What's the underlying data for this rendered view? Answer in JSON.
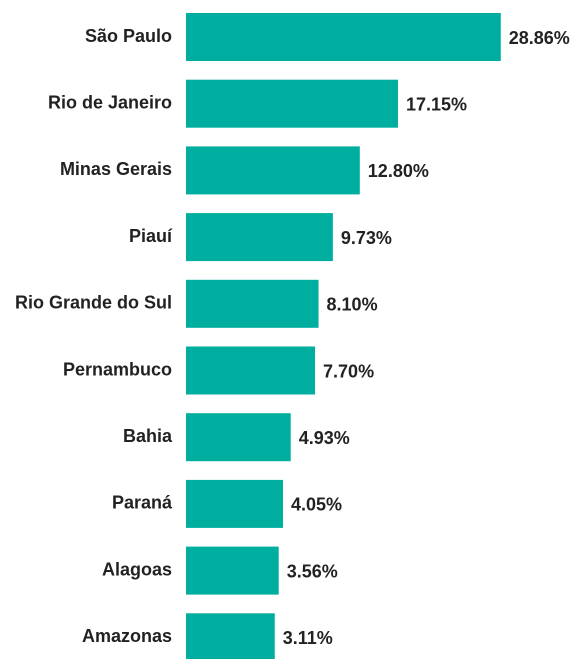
{
  "chart_data": {
    "type": "bar",
    "orientation": "horizontal",
    "categories": [
      "São Paulo",
      "Rio de Janeiro",
      "Minas Gerais",
      "Piauí",
      "Rio Grande do Sul",
      "Pernambuco",
      "Bahia",
      "Paraná",
      "Alagoas",
      "Amazonas"
    ],
    "values": [
      28.86,
      17.15,
      12.8,
      9.73,
      8.1,
      7.7,
      4.93,
      4.05,
      3.56,
      3.11
    ],
    "value_labels": [
      "28.86%",
      "17.15%",
      "12.80%",
      "9.73%",
      "8.10%",
      "7.70%",
      "4.93%",
      "4.05%",
      "3.56%",
      "3.11%"
    ],
    "color": "#00ae9f",
    "xlim": [
      -7,
      29
    ]
  }
}
